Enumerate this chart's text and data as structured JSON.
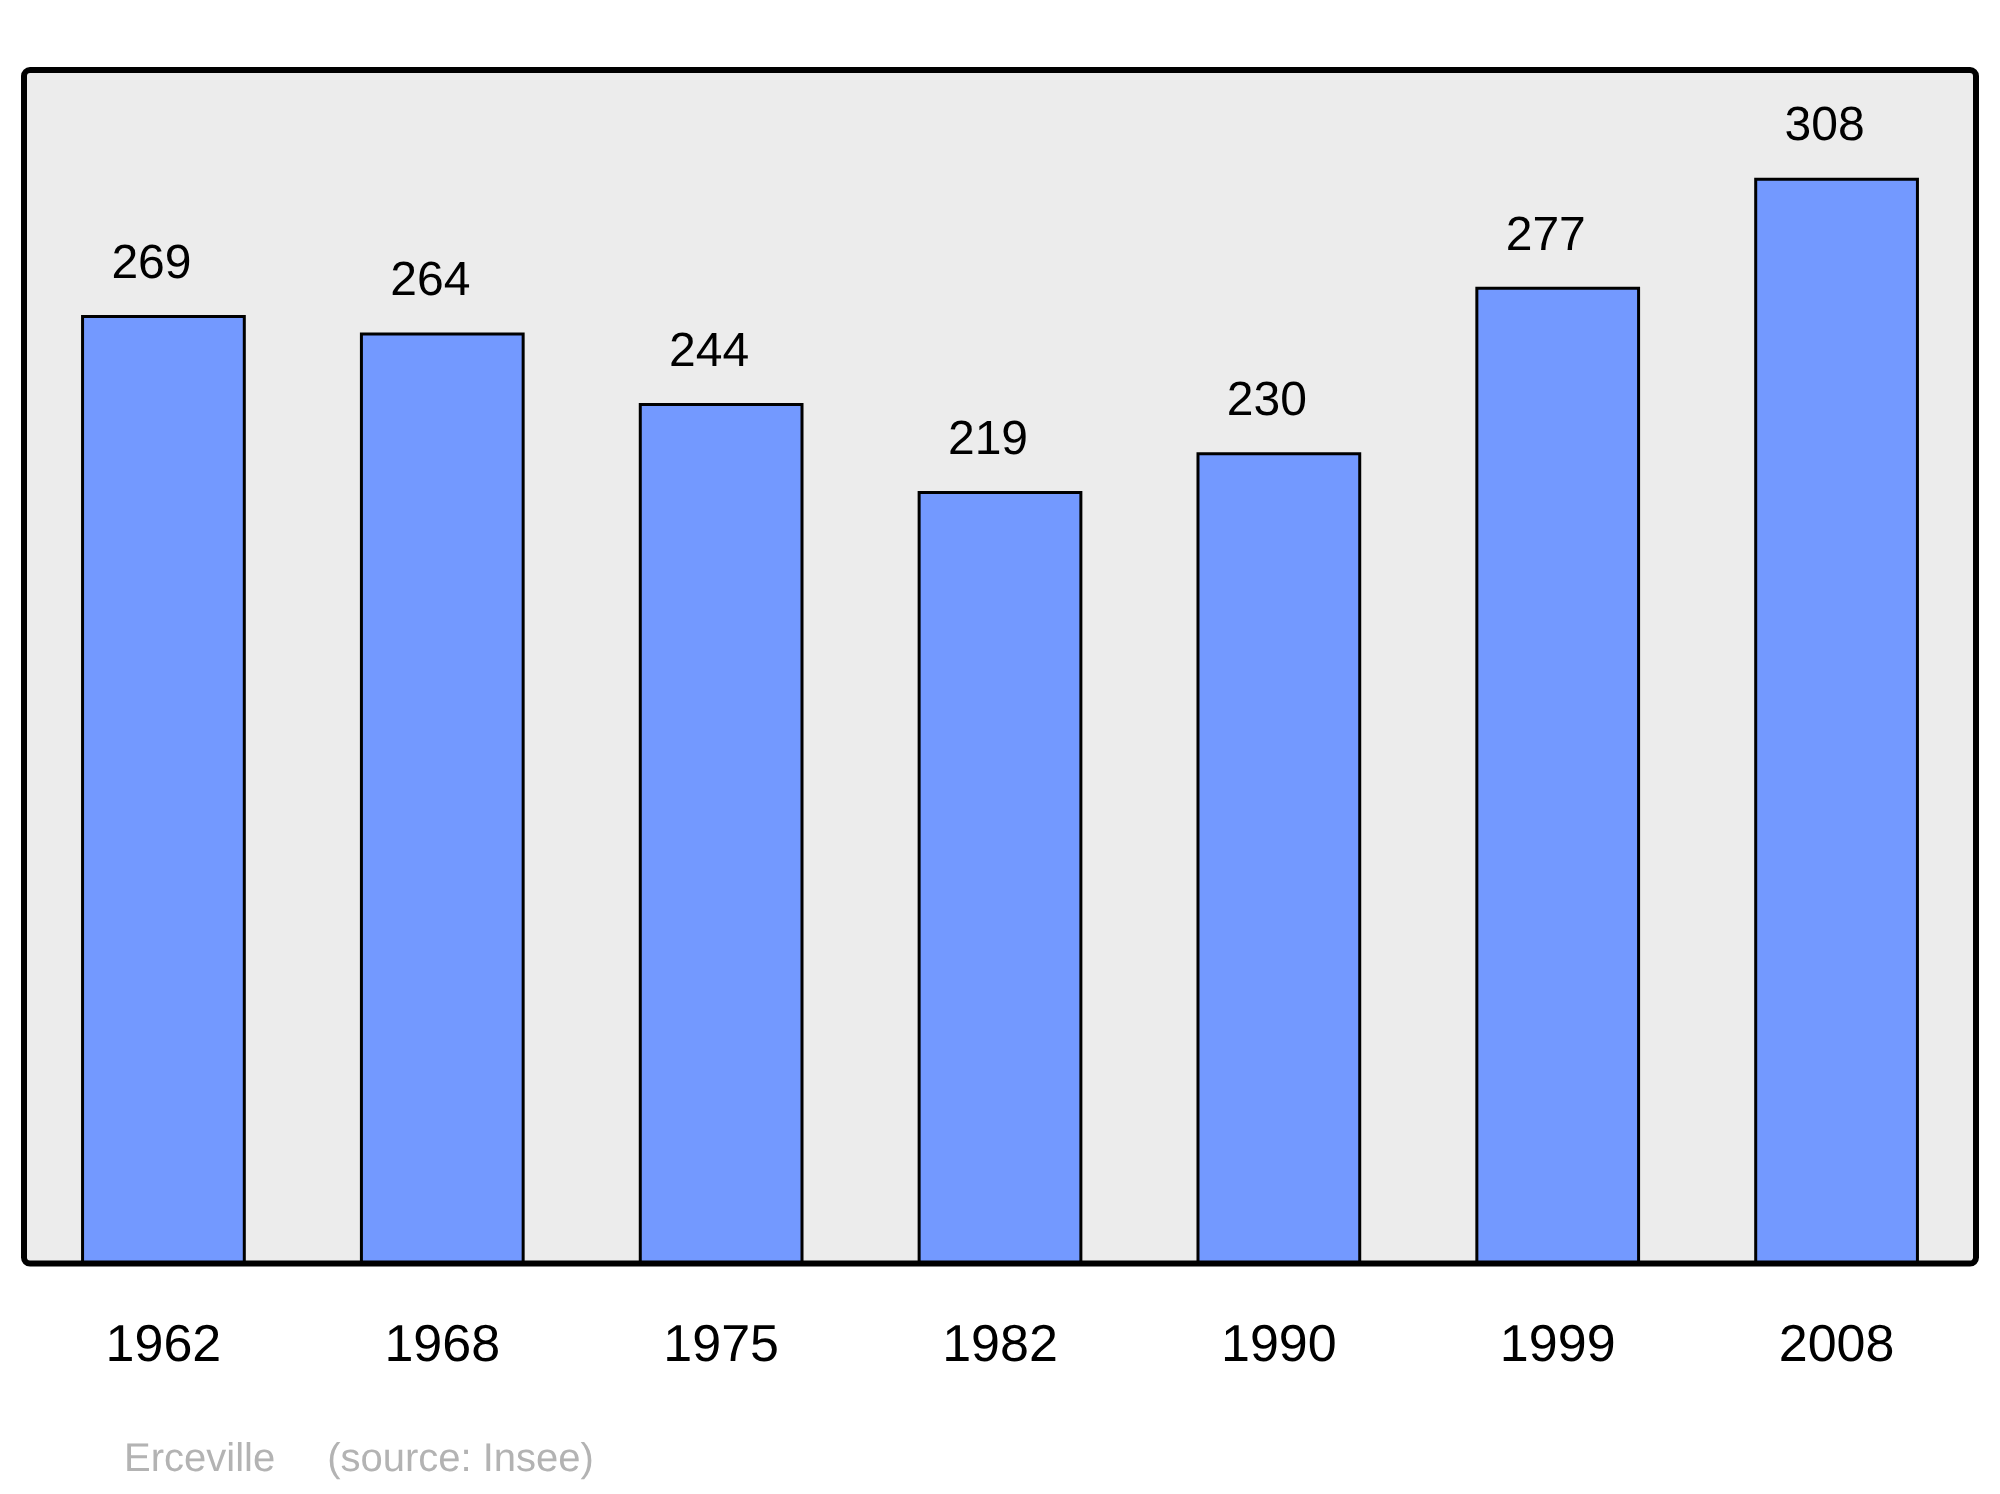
{
  "chart_data": {
    "type": "bar",
    "categories": [
      "1962",
      "1968",
      "1975",
      "1982",
      "1990",
      "1999",
      "2008"
    ],
    "values": [
      269,
      264,
      244,
      219,
      230,
      277,
      308
    ],
    "color": "#7399ff",
    "ylim": [
      0,
      339
    ],
    "data_labels": true,
    "tick_labels": "x",
    "grid": false,
    "legend": false,
    "annotations": [
      "Erceville",
      "(source: Insee)"
    ]
  }
}
